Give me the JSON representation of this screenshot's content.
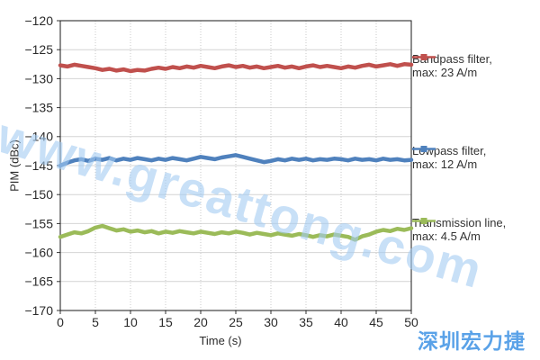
{
  "watermark": {
    "text": "www.greattong.com",
    "brand": "深圳宏力捷",
    "color": "#a4cbf2",
    "brand_color": "#5aa2e8"
  },
  "chart_data": {
    "type": "line",
    "title": "",
    "xlabel": "Time (s)",
    "ylabel": "PIM (dBc)",
    "xlim": [
      0,
      50
    ],
    "ylim": [
      -170,
      -120
    ],
    "x_ticks": [
      0,
      5,
      10,
      15,
      20,
      25,
      30,
      35,
      40,
      45,
      50
    ],
    "y_ticks": [
      -120,
      -125,
      -130,
      -135,
      -140,
      -145,
      -150,
      -155,
      -160,
      -165,
      -170
    ],
    "grid": "horizontal solid, vertical dotted",
    "legend_position": "right",
    "colors": {
      "grid": "#d4d4d4",
      "grid_dotted": "#c8c8c8",
      "border": "#1a1a1a"
    },
    "x": [
      0,
      1,
      2,
      3,
      4,
      5,
      6,
      7,
      8,
      9,
      10,
      11,
      12,
      13,
      14,
      15,
      16,
      17,
      18,
      19,
      20,
      21,
      22,
      23,
      24,
      25,
      26,
      27,
      28,
      29,
      30,
      31,
      32,
      33,
      34,
      35,
      36,
      37,
      38,
      39,
      40,
      41,
      42,
      43,
      44,
      45,
      46,
      47,
      48,
      49,
      50
    ],
    "series": [
      {
        "name": "Bandpass filter",
        "legend": [
          "Bandpass filter,",
          "max: 23 A/m"
        ],
        "color": "#c0504d",
        "values": [
          -127.7,
          -127.9,
          -127.6,
          -127.8,
          -128.0,
          -128.2,
          -128.5,
          -128.3,
          -128.6,
          -128.4,
          -128.7,
          -128.5,
          -128.6,
          -128.3,
          -128.1,
          -128.3,
          -128.0,
          -128.2,
          -127.9,
          -128.1,
          -127.8,
          -128.0,
          -128.2,
          -127.9,
          -127.7,
          -128.0,
          -127.8,
          -128.1,
          -127.9,
          -128.2,
          -128.0,
          -127.8,
          -128.1,
          -127.9,
          -128.2,
          -127.9,
          -127.7,
          -128.0,
          -127.8,
          -128.0,
          -128.2,
          -127.9,
          -128.1,
          -127.8,
          -127.6,
          -127.9,
          -127.7,
          -127.5,
          -127.8,
          -127.5,
          -127.6
        ]
      },
      {
        "name": "Lowpass filter",
        "legend": [
          "Lowpass filter,",
          "max: 12 A/m"
        ],
        "color": "#4f81bd",
        "values": [
          -145.0,
          -144.5,
          -144.1,
          -143.9,
          -144.2,
          -143.8,
          -144.0,
          -143.7,
          -144.1,
          -143.8,
          -144.0,
          -143.7,
          -143.9,
          -144.1,
          -143.8,
          -144.0,
          -143.7,
          -143.9,
          -144.1,
          -143.8,
          -143.5,
          -143.7,
          -143.9,
          -143.6,
          -143.4,
          -143.2,
          -143.5,
          -143.8,
          -144.1,
          -144.4,
          -144.2,
          -143.9,
          -144.1,
          -143.8,
          -144.0,
          -143.8,
          -144.1,
          -143.9,
          -144.0,
          -143.8,
          -143.9,
          -144.1,
          -143.8,
          -144.0,
          -143.9,
          -144.1,
          -143.8,
          -144.0,
          -143.9,
          -144.1,
          -144.0
        ]
      },
      {
        "name": "Transmission line",
        "legend": [
          "Transmission line,",
          "max: 4.5 A/m"
        ],
        "color": "#9bbb59",
        "values": [
          -157.3,
          -156.9,
          -156.5,
          -156.7,
          -156.3,
          -155.7,
          -155.4,
          -155.8,
          -156.2,
          -156.0,
          -156.4,
          -156.2,
          -156.5,
          -156.3,
          -156.7,
          -156.4,
          -156.6,
          -156.3,
          -156.5,
          -156.7,
          -156.4,
          -156.6,
          -156.8,
          -156.5,
          -156.7,
          -156.4,
          -156.6,
          -156.9,
          -156.6,
          -156.8,
          -157.0,
          -156.7,
          -156.9,
          -157.1,
          -156.8,
          -157.0,
          -157.3,
          -157.0,
          -157.2,
          -156.9,
          -157.1,
          -157.3,
          -157.8,
          -157.2,
          -156.9,
          -156.4,
          -156.1,
          -156.3,
          -155.9,
          -156.1,
          -155.8
        ]
      }
    ]
  }
}
